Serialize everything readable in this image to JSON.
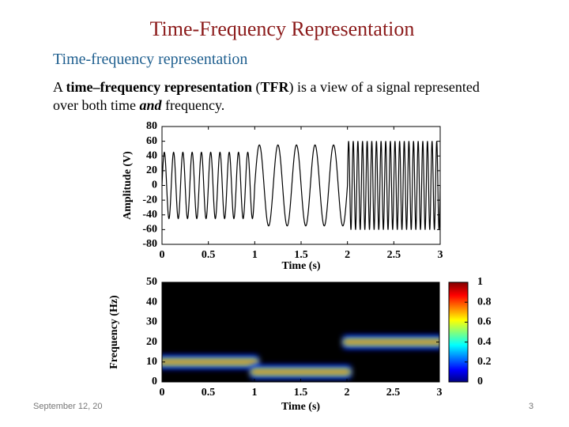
{
  "slide": {
    "title": "Time-Frequency Representation",
    "heading": "Time-frequency representation",
    "paragraph": [
      "A ",
      "time–frequency representation",
      " (",
      "TFR",
      ") is a view of a signal represented",
      "over both time ",
      "and",
      " frequency."
    ],
    "footer_date": "September 12, 20",
    "page_number": "3"
  },
  "waveform": {
    "type": "line",
    "xlabel": "Time (s)",
    "ylabel": "Amplitude (V)",
    "xlim": [
      0,
      3
    ],
    "ylim": [
      -80,
      80
    ],
    "xticks": [
      0,
      0.5,
      1,
      1.5,
      2,
      2.5,
      3
    ],
    "yticks": [
      -80,
      -60,
      -40,
      -20,
      0,
      20,
      40,
      60,
      80
    ],
    "color": "#000000",
    "segments": [
      {
        "start": 0,
        "end": 1,
        "frequency": 10,
        "amplitude": 45
      },
      {
        "start": 1,
        "end": 2,
        "frequency": 5,
        "amplitude": 55
      },
      {
        "start": 2,
        "end": 3,
        "frequency": 20,
        "amplitude": 60
      }
    ]
  },
  "spectrogram": {
    "type": "heatmap",
    "xlabel": "Time (s)",
    "ylabel": "Frequency (Hz)",
    "xlim": [
      0,
      3
    ],
    "ylim": [
      0,
      50
    ],
    "xticks": [
      0,
      0.5,
      1,
      1.5,
      2,
      2.5,
      3
    ],
    "yticks": [
      0,
      10,
      20,
      30,
      40,
      50
    ],
    "colorbar_lim": [
      0,
      1
    ],
    "colorbar_ticks": [
      0,
      0.2,
      0.4,
      0.6,
      0.8,
      1
    ],
    "ridges": [
      {
        "start": 0,
        "end": 1,
        "frequency": 10
      },
      {
        "start": 1,
        "end": 2,
        "frequency": 5
      },
      {
        "start": 2,
        "end": 3,
        "frequency": 20
      }
    ]
  }
}
